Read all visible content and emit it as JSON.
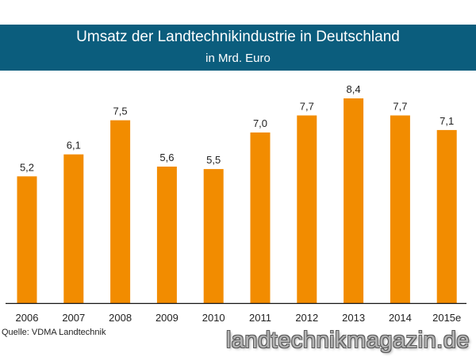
{
  "colors": {
    "header_bg": "#0b5d7d",
    "bar": "#f28c00",
    "axis": "#111111",
    "text": "#222222"
  },
  "chart_data": {
    "type": "bar",
    "title": "Umsatz der Landtechnikindustrie in Deutschland",
    "subtitle": "in Mrd. Euro",
    "categories": [
      "2006",
      "2007",
      "2008",
      "2009",
      "2010",
      "2011",
      "2012",
      "2013",
      "2014",
      "2015e"
    ],
    "values": [
      5.2,
      6.1,
      7.5,
      5.6,
      5.5,
      7.0,
      7.7,
      8.4,
      7.7,
      7.1
    ],
    "value_labels": [
      "5,2",
      "6,1",
      "7,5",
      "5,6",
      "5,5",
      "7,0",
      "7,7",
      "8,4",
      "7,7",
      "7,1"
    ],
    "xlabel": "",
    "ylabel": "",
    "ylim": [
      0,
      8.4
    ],
    "grid": false,
    "legend": "none"
  },
  "source": "Quelle: VDMA Landtechnik",
  "watermark": "landtechnikmagazin.de"
}
